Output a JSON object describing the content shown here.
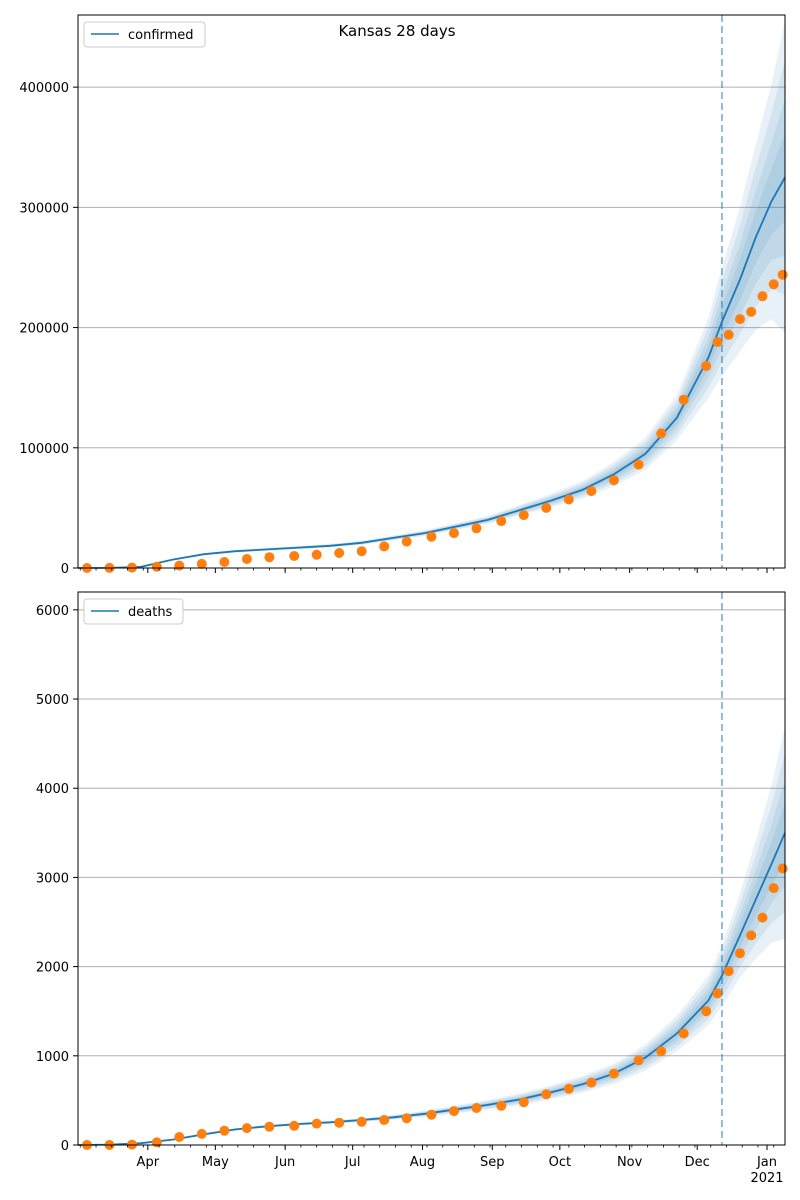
{
  "figure_title": "Kansas 28 days",
  "colors": {
    "model": "#1f77b4",
    "observed": "#ff7f0e",
    "band": "#1f77b4",
    "grid": "#b0b0b0",
    "forecast_line": "#1f77b4"
  },
  "x_axis": {
    "months": [
      "Apr",
      "May",
      "Jun",
      "Jul",
      "Aug",
      "Sep",
      "Oct",
      "Nov",
      "Dec",
      "Jan"
    ],
    "year_label": "2021"
  },
  "chart_data": [
    {
      "type": "line",
      "name_in_legend": "confirmed",
      "x_start": "2020-03-01",
      "x_end": "2021-01-09",
      "forecast_start": "2020-12-12",
      "ylim": [
        0,
        460000
      ],
      "yticks": [
        0,
        100000,
        200000,
        300000,
        400000
      ],
      "ytick_labels": [
        "0",
        "100000",
        "200000",
        "300000",
        "400000"
      ],
      "grid": "y",
      "legend": "top-left",
      "model_curve": {
        "x": [
          "2020-03-01",
          "2020-03-15",
          "2020-03-29",
          "2020-04-12",
          "2020-04-26",
          "2020-05-10",
          "2020-05-24",
          "2020-06-07",
          "2020-06-21",
          "2020-07-05",
          "2020-07-19",
          "2020-08-02",
          "2020-08-16",
          "2020-08-30",
          "2020-09-13",
          "2020-09-27",
          "2020-10-11",
          "2020-10-25",
          "2020-11-08",
          "2020-11-22",
          "2020-12-06",
          "2020-12-12",
          "2020-12-20",
          "2020-12-27",
          "2021-01-03",
          "2021-01-09"
        ],
        "y": [
          0,
          100,
          1000,
          7000,
          11500,
          14000,
          15500,
          17000,
          18500,
          21000,
          25000,
          29000,
          34500,
          40000,
          48000,
          56000,
          65000,
          78000,
          95000,
          125000,
          175000,
          205000,
          240000,
          275000,
          305000,
          325000
        ],
        "band_half_width_pct": [
          0,
          5,
          10,
          10,
          8,
          8,
          8,
          8,
          8,
          8,
          8,
          8,
          8,
          8,
          9,
          10,
          11,
          13,
          14,
          15,
          19,
          22,
          25,
          28,
          32,
          40
        ]
      },
      "observed": {
        "x": [
          "2020-03-05",
          "2020-03-15",
          "2020-03-25",
          "2020-04-05",
          "2020-04-15",
          "2020-04-25",
          "2020-05-05",
          "2020-05-15",
          "2020-05-25",
          "2020-06-05",
          "2020-06-15",
          "2020-06-25",
          "2020-07-05",
          "2020-07-15",
          "2020-07-25",
          "2020-08-05",
          "2020-08-15",
          "2020-08-25",
          "2020-09-05",
          "2020-09-15",
          "2020-09-25",
          "2020-10-05",
          "2020-10-15",
          "2020-10-25",
          "2020-11-05",
          "2020-11-15",
          "2020-11-25",
          "2020-12-05",
          "2020-12-10",
          "2020-12-15",
          "2020-12-20",
          "2020-12-25",
          "2020-12-30",
          "2021-01-04",
          "2021-01-08"
        ],
        "y": [
          0,
          50,
          300,
          1000,
          2000,
          3400,
          5000,
          7500,
          9000,
          10000,
          11000,
          12500,
          14000,
          18000,
          22000,
          26000,
          29000,
          33000,
          39000,
          44000,
          50000,
          57000,
          64000,
          73000,
          86000,
          112000,
          140000,
          168000,
          188000,
          194000,
          207000,
          213000,
          226000,
          236000,
          244000
        ]
      }
    },
    {
      "type": "line",
      "name_in_legend": "deaths",
      "x_start": "2020-03-01",
      "x_end": "2021-01-09",
      "forecast_start": "2020-12-12",
      "ylim": [
        0,
        6200
      ],
      "yticks": [
        0,
        1000,
        2000,
        3000,
        4000,
        5000,
        6000
      ],
      "ytick_labels": [
        "0",
        "1000",
        "2000",
        "3000",
        "4000",
        "5000",
        "6000"
      ],
      "grid": "y",
      "legend": "top-left",
      "model_curve": {
        "x": [
          "2020-03-01",
          "2020-03-15",
          "2020-03-29",
          "2020-04-12",
          "2020-04-26",
          "2020-05-10",
          "2020-05-24",
          "2020-06-07",
          "2020-06-21",
          "2020-07-05",
          "2020-07-19",
          "2020-08-02",
          "2020-08-16",
          "2020-08-30",
          "2020-09-13",
          "2020-09-27",
          "2020-10-11",
          "2020-10-25",
          "2020-11-08",
          "2020-11-22",
          "2020-12-06",
          "2020-12-12",
          "2020-12-20",
          "2020-12-27",
          "2021-01-03",
          "2021-01-09"
        ],
        "y": [
          0,
          5,
          20,
          60,
          120,
          175,
          210,
          235,
          255,
          280,
          310,
          350,
          400,
          450,
          510,
          590,
          680,
          800,
          980,
          1250,
          1620,
          1900,
          2350,
          2750,
          3150,
          3500
        ],
        "band_half_width_pct": [
          0,
          10,
          15,
          12,
          10,
          8,
          7,
          7,
          7,
          8,
          9,
          10,
          11,
          12,
          13,
          13,
          14,
          14,
          15,
          16,
          17,
          18,
          20,
          24,
          28,
          34
        ]
      },
      "observed": {
        "x": [
          "2020-03-05",
          "2020-03-15",
          "2020-03-25",
          "2020-04-05",
          "2020-04-15",
          "2020-04-25",
          "2020-05-05",
          "2020-05-15",
          "2020-05-25",
          "2020-06-05",
          "2020-06-15",
          "2020-06-25",
          "2020-07-05",
          "2020-07-15",
          "2020-07-25",
          "2020-08-05",
          "2020-08-15",
          "2020-08-25",
          "2020-09-05",
          "2020-09-15",
          "2020-09-25",
          "2020-10-05",
          "2020-10-15",
          "2020-10-25",
          "2020-11-05",
          "2020-11-15",
          "2020-11-25",
          "2020-12-05",
          "2020-12-10",
          "2020-12-15",
          "2020-12-20",
          "2020-12-25",
          "2020-12-30",
          "2021-01-04",
          "2021-01-08"
        ],
        "y": [
          0,
          0,
          5,
          30,
          90,
          125,
          160,
          190,
          205,
          215,
          240,
          250,
          260,
          280,
          300,
          340,
          380,
          415,
          440,
          480,
          570,
          630,
          700,
          800,
          950,
          1050,
          1250,
          1500,
          1700,
          1950,
          2150,
          2350,
          2550,
          2880,
          3100
        ]
      }
    }
  ]
}
